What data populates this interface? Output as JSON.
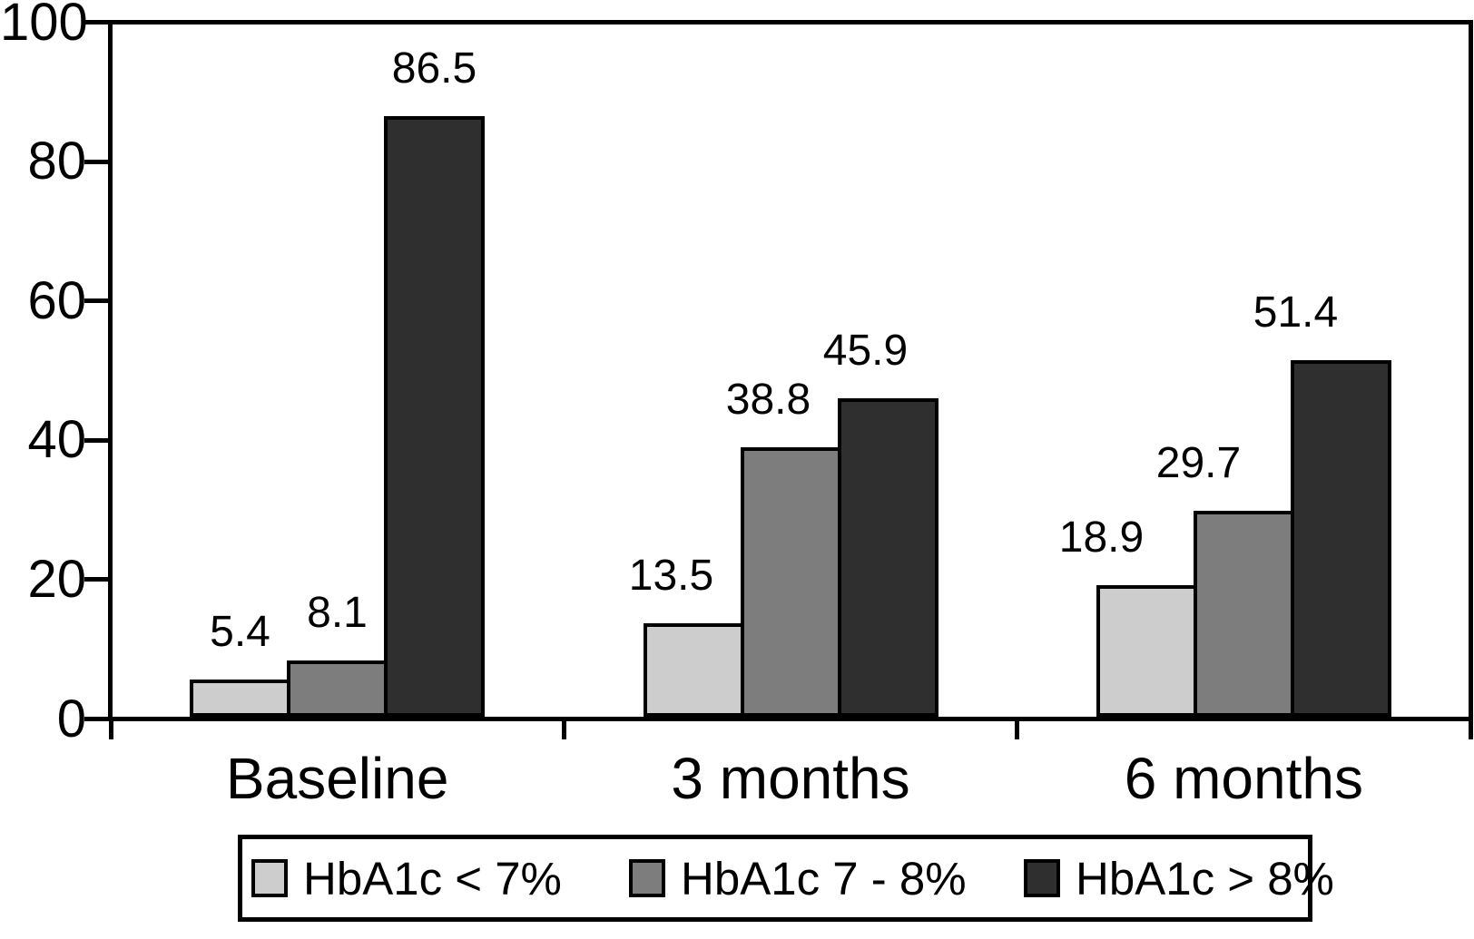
{
  "chart_data": {
    "type": "bar",
    "title": "",
    "categories": [
      "Baseline",
      "3 months",
      "6 months"
    ],
    "series": [
      {
        "name": "HbA1c < 7%",
        "color": "#cdcdcd",
        "values": [
          5.4,
          13.5,
          18.9
        ]
      },
      {
        "name": "HbA1c 7 - 8%",
        "color": "#7d7d7d",
        "values": [
          8.1,
          38.8,
          29.7
        ]
      },
      {
        "name": "HbA1c > 8%",
        "color": "#2f2f2f",
        "values": [
          86.5,
          45.9,
          51.4
        ]
      }
    ],
    "value_labels": {
      "baseline": [
        "5.4",
        "8.1",
        "86.5"
      ],
      "three_months": [
        "13.5",
        "38.8",
        "45.9"
      ],
      "six_months": [
        "18.9",
        "29.7",
        "51.4"
      ]
    },
    "ylim": [
      0,
      100
    ],
    "yticks": [
      0,
      20,
      40,
      60,
      80,
      100
    ],
    "xlabel": "",
    "ylabel": "",
    "grid": false,
    "legend_position": "bottom",
    "axis_color": "#000000",
    "background_color": "#ffffff"
  }
}
